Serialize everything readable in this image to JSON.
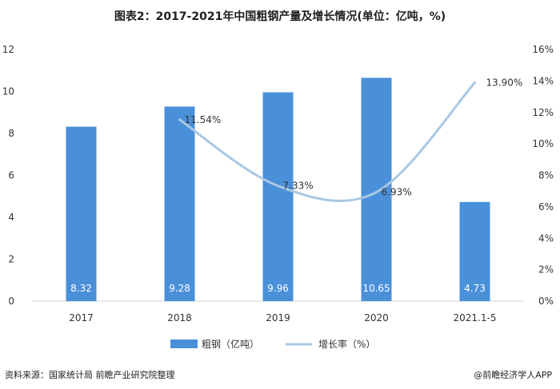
{
  "title": "图表2：2017-2021年中国粗钢产量及增长情况(单位：亿吨，%)",
  "source": "资料来源：国家统计局 前瞻产业研究院整理",
  "credit": "@前瞻经济学人APP",
  "colors": {
    "bar": "#4a90d9",
    "line": "#a9c8e4",
    "grid": "#e3e3e3",
    "text": "#333333"
  },
  "chart_data": {
    "type": "bar",
    "categories": [
      "2017",
      "2018",
      "2019",
      "2020",
      "2021.1-5"
    ],
    "series": [
      {
        "name": "粗钢（亿吨）",
        "type": "bar",
        "axis": "left",
        "values": [
          8.32,
          9.28,
          9.96,
          10.65,
          4.73
        ],
        "labels": [
          "8.32",
          "9.28",
          "9.96",
          "10.65",
          "4.73"
        ]
      },
      {
        "name": "增长率（%）",
        "type": "line",
        "axis": "right",
        "smooth": true,
        "values": [
          null,
          11.54,
          7.33,
          6.93,
          13.9
        ],
        "labels": [
          "",
          "11.54%",
          "7.33%",
          "6.93%",
          "13.90%"
        ]
      }
    ],
    "y_left": {
      "ylim": [
        0,
        12
      ],
      "ticks": [
        "0",
        "2",
        "4",
        "6",
        "8",
        "10",
        "12"
      ]
    },
    "y_right": {
      "ylim": [
        0,
        16
      ],
      "ticks": [
        "0%",
        "2%",
        "4%",
        "6%",
        "8%",
        "10%",
        "12%",
        "14%",
        "16%"
      ]
    },
    "grid": false,
    "legend": "bottom"
  }
}
